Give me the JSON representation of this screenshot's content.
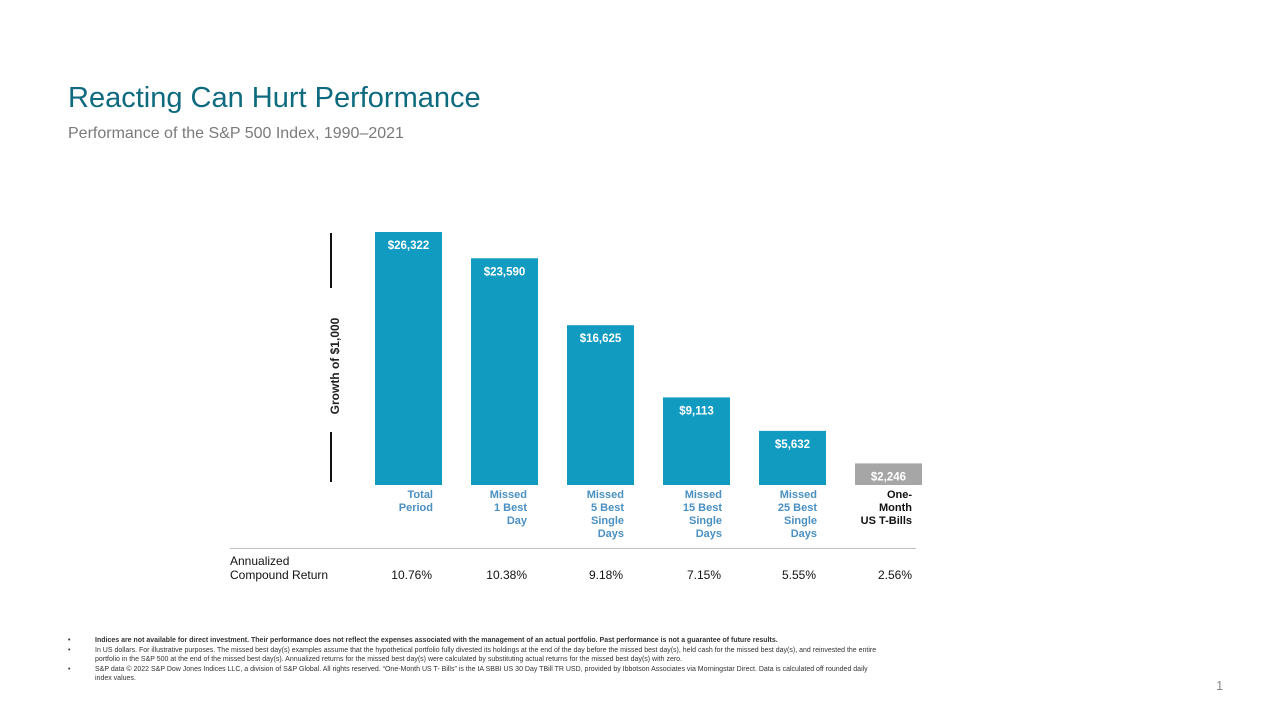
{
  "slide": {
    "title": "Reacting Can Hurt Performance",
    "subtitle": "Performance of the S&P 500 Index, 1990–2021",
    "page_number": "1"
  },
  "chart_data": {
    "type": "bar",
    "title": "Reacting Can Hurt Performance",
    "subtitle": "Performance of the S&P 500 Index, 1990–2021",
    "ylabel": "Growth of $1,000",
    "xlabel": "",
    "categories": [
      "Total\nPeriod",
      "Missed\n1 Best\nDay",
      "Missed\n5 Best\nSingle\nDays",
      "Missed\n15 Best\nSingle\nDays",
      "Missed\n25 Best\nSingle\nDays",
      "One-\nMonth\nUS T-Bills"
    ],
    "values": [
      26322,
      23590,
      16625,
      9113,
      5632,
      2246
    ],
    "value_labels": [
      "$26,322",
      "$23,590",
      "$16,625",
      "$9,113",
      "$5,632",
      "$2,246"
    ],
    "ylim": [
      0,
      26322
    ],
    "grid": false,
    "colors": [
      "#129bc1",
      "#129bc1",
      "#129bc1",
      "#129bc1",
      "#129bc1",
      "#a6a6a6"
    ],
    "annualized_returns": {
      "label_line1": "Annualized",
      "label_line2": "Compound Return",
      "values": [
        "10.76%",
        "10.38%",
        "9.18%",
        "7.15%",
        "5.55%",
        "2.56%"
      ]
    }
  },
  "footnotes": [
    {
      "bullet": "•",
      "text": "Indices are not available for direct investment. Their performance does not reflect the expenses associated with the management of an actual portfolio. Past performance is not a guarantee of future results."
    },
    {
      "bullet": "•",
      "text": "In US dollars. For illustrative purposes. The missed best day(s) examples assume that the hypothetical portfolio fully divested its holdings at the end of the day before the missed best day(s), held cash for the missed best day(s), and reinvested the entire portfolio in the S&P 500 at the end of the missed best day(s). Annualized returns for the missed best day(s) were calculated by substituting actual returns for the missed best day(s) with zero."
    },
    {
      "bullet": "•",
      "text": "S&P data © 2022 S&P Dow Jones Indices LLC, a division of S&P Global. All rights reserved. “One-Month US T- Bills” is the IA SBBI US 30 Day TBill TR USD, provided by Ibbotson Associates via Morningstar Direct. Data is calculated off rounded daily index values."
    }
  ]
}
